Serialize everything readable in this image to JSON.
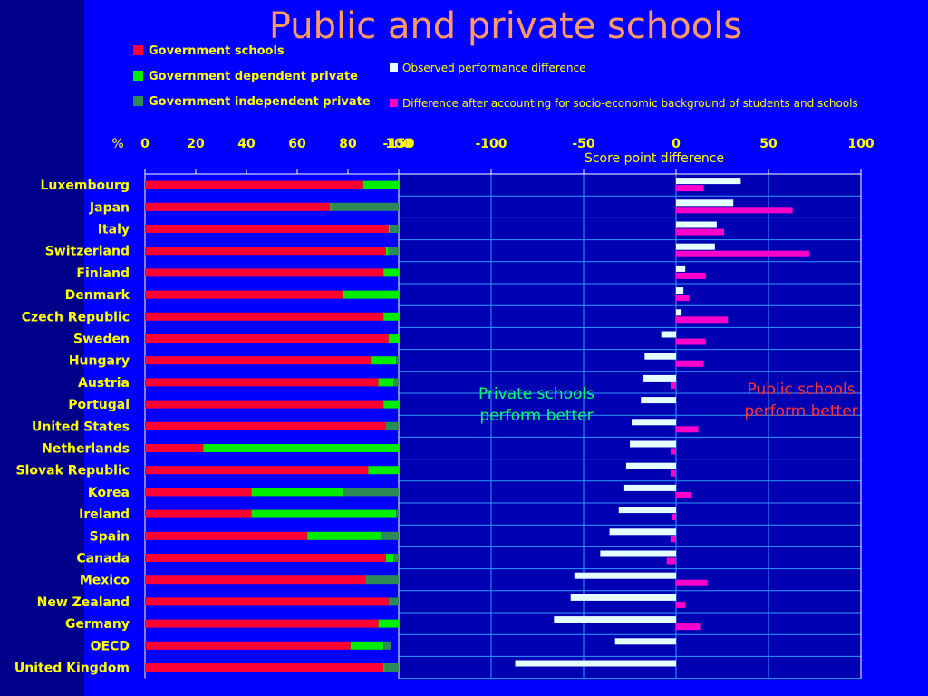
{
  "slide": {
    "title": "Public and private schools",
    "percent_symbol": "%",
    "note_private": [
      "Private schools",
      "perform better"
    ],
    "note_public": [
      "Public schools",
      "perform better"
    ]
  },
  "colors": {
    "background": "#0000ff",
    "left_strip": "#00008a",
    "plot_bg": "#0000b3",
    "government": "#ff0033",
    "dependent": "#00ee00",
    "independent": "#2e8b57",
    "observed": "#e6ffff",
    "adjusted": "#ff00cc",
    "title": "#ff9966",
    "text": "#ffff00"
  },
  "legend": {
    "government": "Government schools",
    "dependent": "Government dependent private",
    "independent": "Government independent private",
    "observed": "Observed performance difference",
    "adjusted": "Difference after accounting for socio-economic background of students and schools"
  },
  "chart_data": [
    {
      "type": "bar",
      "orientation": "horizontal",
      "stacked": true,
      "title": "",
      "xlabel": "%",
      "xlim": [
        0,
        100
      ],
      "xticks": [
        "0",
        "20",
        "40",
        "60",
        "80",
        "100"
      ],
      "categories": [
        "Luxembourg",
        "Japan",
        "Italy",
        "Switzerland",
        "Finland",
        "Denmark",
        "Czech Republic",
        "Sweden",
        "Hungary",
        "Austria",
        "Portugal",
        "United States",
        "Netherlands",
        "Slovak Republic",
        "Korea",
        "Ireland",
        "Spain",
        "Canada",
        "Mexico",
        "New Zealand",
        "Germany",
        "OECD",
        "United Kingdom"
      ],
      "series": [
        {
          "name": "Government schools",
          "values": [
            86,
            73,
            96,
            95,
            94,
            78,
            94,
            96,
            89,
            92,
            94,
            95,
            23,
            88,
            42,
            42,
            64,
            95,
            87,
            96,
            92,
            81,
            94
          ]
        },
        {
          "name": "Government dependent private",
          "values": [
            14,
            0.5,
            0.5,
            1,
            6,
            22,
            6,
            4,
            10,
            6,
            6,
            0,
            77,
            12,
            36,
            57,
            29,
            3,
            0,
            0,
            8,
            13,
            0.5
          ]
        },
        {
          "name": "Government independent private",
          "values": [
            0,
            26.5,
            3.5,
            4,
            0,
            0,
            0,
            0,
            1,
            2,
            0,
            5,
            0,
            0,
            22,
            1,
            7,
            2,
            13,
            4,
            0,
            3,
            5.5
          ]
        }
      ]
    },
    {
      "type": "bar",
      "orientation": "horizontal",
      "title": "",
      "xlabel": "Score point difference",
      "xlim": [
        -150,
        100
      ],
      "xticks": [
        "-150",
        "-100",
        "-50",
        "0",
        "50",
        "100"
      ],
      "categories": [
        "Luxembourg",
        "Japan",
        "Italy",
        "Switzerland",
        "Finland",
        "Denmark",
        "Czech Republic",
        "Sweden",
        "Hungary",
        "Austria",
        "Portugal",
        "United States",
        "Netherlands",
        "Slovak Republic",
        "Korea",
        "Ireland",
        "Spain",
        "Canada",
        "Mexico",
        "New Zealand",
        "Germany",
        "OECD",
        "United Kingdom"
      ],
      "series": [
        {
          "name": "Observed performance difference",
          "values": [
            35,
            31,
            22,
            21,
            5,
            4,
            3,
            -8,
            -17,
            -18,
            -19,
            -24,
            -25,
            -27,
            -28,
            -31,
            -36,
            -41,
            -55,
            -57,
            -66,
            -33,
            -87
          ]
        },
        {
          "name": "Difference after accounting for socio-economic background of students and schools",
          "values": [
            15,
            63,
            26,
            72,
            16,
            7,
            28,
            16,
            15,
            -3,
            0,
            12,
            -3,
            -3,
            8,
            -2,
            -3,
            -5,
            17,
            5,
            13,
            0,
            0
          ]
        }
      ]
    }
  ]
}
